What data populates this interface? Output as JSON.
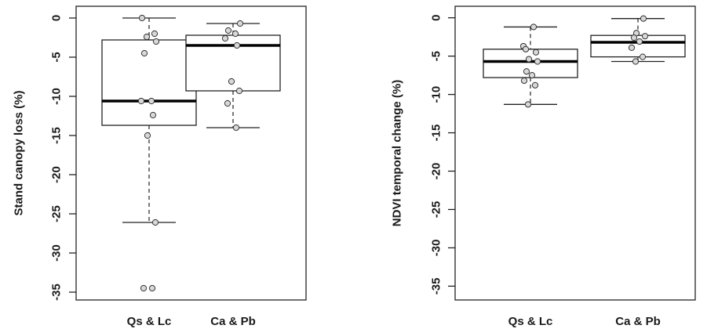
{
  "chart_data": [
    {
      "type": "boxplot",
      "title": "",
      "xlabel": "",
      "ylabel": "Stand canopy loss (%)",
      "ylim": [
        -36,
        1.5
      ],
      "yticks": [
        0,
        -5,
        -10,
        -15,
        -20,
        -25,
        -30,
        -35
      ],
      "ytick_labels": [
        "0",
        "-5",
        "-10",
        "-15",
        "-20",
        "-25",
        "-30",
        "-35"
      ],
      "categories": [
        "Qs & Lc",
        "Ca & Pb"
      ],
      "boxes": [
        {
          "category": "Qs & Lc",
          "q1": -13.7,
          "median": -10.6,
          "q3": -2.8,
          "whisker_low": -26.1,
          "whisker_high": 0.0
        },
        {
          "category": "Ca & Pb",
          "q1": -9.3,
          "median": -3.5,
          "q3": -2.2,
          "whisker_low": -14.0,
          "whisker_high": -0.7
        }
      ],
      "points": [
        {
          "category": "Qs & Lc",
          "values": [
            0.0,
            -2.0,
            -2.4,
            -3.0,
            -4.5,
            -10.6,
            -10.6,
            -12.4,
            -15.0,
            -26.1,
            -34.5,
            -34.5
          ]
        },
        {
          "category": "Ca & Pb",
          "values": [
            -0.7,
            -1.6,
            -2.0,
            -2.6,
            -3.5,
            -8.1,
            -9.3,
            -10.9,
            -14.0
          ]
        }
      ],
      "grid": false,
      "legend": "none"
    },
    {
      "type": "boxplot",
      "title": "",
      "xlabel": "",
      "ylabel": "NDVI temporal change (%)",
      "ylim": [
        -36.8,
        1.5
      ],
      "yticks": [
        0,
        -5,
        -10,
        -15,
        -20,
        -25,
        -30,
        -35
      ],
      "ytick_labels": [
        "0",
        "-5",
        "-10",
        "-15",
        "-20",
        "-25",
        "-30",
        "-35"
      ],
      "categories": [
        "Qs & Lc",
        "Ca & Pb"
      ],
      "boxes": [
        {
          "category": "Qs & Lc",
          "q1": -7.8,
          "median": -5.7,
          "q3": -4.1,
          "whisker_low": -11.3,
          "whisker_high": -1.2
        },
        {
          "category": "Ca & Pb",
          "q1": -5.1,
          "median": -3.2,
          "q3": -2.3,
          "whisker_low": -5.7,
          "whisker_high": -0.1
        }
      ],
      "points": [
        {
          "category": "Qs & Lc",
          "values": [
            -1.2,
            -3.7,
            -4.1,
            -4.5,
            -5.4,
            -5.7,
            -7.0,
            -7.5,
            -8.2,
            -8.8,
            -11.3
          ]
        },
        {
          "category": "Ca & Pb",
          "values": [
            -0.1,
            -2.0,
            -2.4,
            -2.6,
            -3.1,
            -3.9,
            -5.1,
            -5.7
          ]
        }
      ],
      "grid": false,
      "legend": "none"
    }
  ]
}
